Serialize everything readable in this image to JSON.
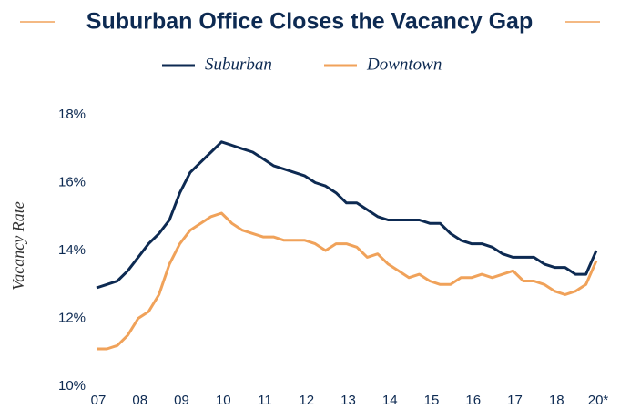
{
  "chart_data": {
    "type": "line",
    "title": "Suburban Office Closes the Vacancy Gap",
    "y_label": "Vacancy Rate",
    "categories": [
      "07",
      null,
      null,
      null,
      "08",
      null,
      null,
      null,
      "09",
      null,
      null,
      null,
      "10",
      null,
      null,
      null,
      "11",
      null,
      null,
      null,
      "12",
      null,
      null,
      null,
      "13",
      null,
      null,
      null,
      "14",
      null,
      null,
      null,
      "15",
      null,
      null,
      null,
      "16",
      null,
      null,
      null,
      "17",
      null,
      null,
      null,
      "18",
      null,
      null,
      null,
      "20*"
    ],
    "series": [
      {
        "name": "Suburban",
        "color": "#0d2a52",
        "values": [
          12.9,
          13.0,
          13.1,
          13.4,
          13.8,
          14.2,
          14.5,
          14.9,
          15.7,
          16.3,
          16.6,
          16.9,
          17.2,
          17.1,
          17.0,
          16.9,
          16.7,
          16.5,
          16.4,
          16.3,
          16.2,
          16.0,
          15.9,
          15.7,
          15.4,
          15.4,
          15.2,
          15.0,
          14.9,
          14.9,
          14.9,
          14.9,
          14.8,
          14.8,
          14.5,
          14.3,
          14.2,
          14.2,
          14.1,
          13.9,
          13.8,
          13.8,
          13.8,
          13.6,
          13.5,
          13.5,
          13.3,
          13.3,
          14.0
        ]
      },
      {
        "name": "Downtown",
        "color": "#f0a25a",
        "values": [
          11.1,
          11.1,
          11.2,
          11.5,
          12.0,
          12.2,
          12.7,
          13.6,
          14.2,
          14.6,
          14.8,
          15.0,
          15.1,
          14.8,
          14.6,
          14.5,
          14.4,
          14.4,
          14.3,
          14.3,
          14.3,
          14.2,
          14.0,
          14.2,
          14.2,
          14.1,
          13.8,
          13.9,
          13.6,
          13.4,
          13.2,
          13.3,
          13.1,
          13.0,
          13.0,
          13.2,
          13.2,
          13.3,
          13.2,
          13.3,
          13.4,
          13.1,
          13.1,
          13.0,
          12.8,
          12.7,
          12.8,
          13.0,
          13.7
        ]
      }
    ],
    "ylim": [
      10,
      18
    ],
    "yticks": [
      {
        "value": 10,
        "label": "10%"
      },
      {
        "value": 12,
        "label": "12%"
      },
      {
        "value": 14,
        "label": "14%"
      },
      {
        "value": 16,
        "label": "16%"
      },
      {
        "value": 18,
        "label": "18%"
      }
    ],
    "grid": false,
    "legend": "top"
  }
}
